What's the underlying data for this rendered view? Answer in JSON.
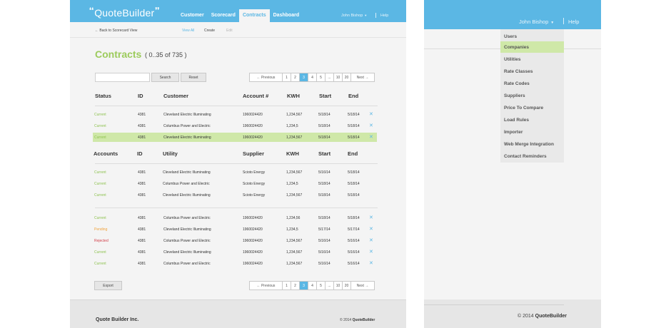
{
  "logo": {
    "text": "QuoteBuilder"
  },
  "nav": [
    "Customer",
    "Scorecard",
    "Contracts",
    "Dashboard"
  ],
  "nav_active": "Contracts",
  "user": {
    "name": "John Bishop",
    "help": "Help"
  },
  "subbar": {
    "back": "← Back to Scorecard View",
    "tabs": [
      "View All",
      "Create",
      "Edit"
    ]
  },
  "page": {
    "title": "Contracts",
    "count": "( 0..35 of 735 )"
  },
  "search": {
    "placeholder": "",
    "search_label": "Search",
    "reset_label": "Reset"
  },
  "pager": {
    "prev": "← Previous",
    "pages": [
      "1",
      "2",
      "3",
      "4",
      "5",
      "...",
      "10",
      "20"
    ],
    "current": "3",
    "next": "Next →"
  },
  "table1": {
    "headers": [
      "Status",
      "ID",
      "Customer",
      "Account #",
      "KWH",
      "Start",
      "End"
    ],
    "rows": [
      {
        "status": "Current",
        "status_type": "current",
        "id": "4381",
        "customer": "Cleveland Electric Illuminating",
        "account": "1960024420",
        "kwh": "1,234,567",
        "start": "5/18/14",
        "end": "5/18/14",
        "removable": true,
        "highlight": false
      },
      {
        "status": "Current",
        "status_type": "current",
        "id": "4381",
        "customer": "Columbus Power and Electric",
        "account": "1960024420",
        "kwh": "1,234,5",
        "start": "5/18/14",
        "end": "5/18/14",
        "removable": true,
        "highlight": false
      },
      {
        "status": "Current",
        "status_type": "current",
        "id": "4381",
        "customer": "Cleveland Electric Illuminating",
        "account": "1960024420",
        "kwh": "1,234,567",
        "start": "5/18/14",
        "end": "5/18/14",
        "removable": true,
        "highlight": true
      }
    ]
  },
  "table2": {
    "headers": [
      "Accounts",
      "ID",
      "Utility",
      "Supplier",
      "KWH",
      "Start",
      "End"
    ],
    "rows": [
      {
        "status": "Current",
        "status_type": "current",
        "id": "4381",
        "utility": "Cleveland Electric Illuminating",
        "supplier": "Scioto Energy",
        "kwh": "1,234,567",
        "start": "5/16/14",
        "end": "5/18/14"
      },
      {
        "status": "Current",
        "status_type": "current",
        "id": "4381",
        "utility": "Columbus Power and Electric",
        "supplier": "Scioto Energy",
        "kwh": "1,234,5",
        "start": "5/18/14",
        "end": "5/18/14"
      },
      {
        "status": "Current",
        "status_type": "current",
        "id": "4381",
        "utility": "Cleveland Electric Illuminating",
        "supplier": "Scioto Energy",
        "kwh": "1,234,567",
        "start": "5/18/14",
        "end": "5/18/14"
      }
    ]
  },
  "table3": {
    "rows": [
      {
        "status": "Current",
        "status_type": "current",
        "id": "4381",
        "customer": "Columbus Power and Electric",
        "account": "1960024420",
        "kwh": "1,234,56",
        "start": "5/18/14",
        "end": "5/18/14"
      },
      {
        "status": "Pending",
        "status_type": "pending",
        "id": "4381",
        "customer": "Cleveland Electric Illuminating",
        "account": "1960024420",
        "kwh": "1,234,5",
        "start": "5/17/14",
        "end": "5/17/14"
      },
      {
        "status": "Rejected",
        "status_type": "rejected",
        "id": "4381",
        "customer": "Columbus Power and Electric",
        "account": "1960024420",
        "kwh": "1,234,567",
        "start": "5/16/14",
        "end": "5/16/14"
      },
      {
        "status": "Current",
        "status_type": "current",
        "id": "4381",
        "customer": "Cleveland Electric Illuminating",
        "account": "1960024420",
        "kwh": "1,234,567",
        "start": "5/16/14",
        "end": "5/16/14"
      },
      {
        "status": "Current",
        "status_type": "current",
        "id": "4381",
        "customer": "Columbus Power and Electric",
        "account": "1960024420",
        "kwh": "1,234,567",
        "start": "5/16/14",
        "end": "5/16/14"
      }
    ]
  },
  "export_label": "Export",
  "footer": {
    "company": "Quote Builder Inc.",
    "copyright_prefix": "© 2014",
    "copyright_brand": "QuoteBuilder"
  },
  "right_panel": {
    "user": "John Bishop",
    "help": "Help",
    "menu": [
      "Users",
      "Companies",
      "Utilities",
      "Rate Classes",
      "Rate Codes",
      "Suppliers",
      "Price To Compare",
      "Load Rules",
      "Importer",
      "Web Merge Integration",
      "Contact Reminders"
    ],
    "menu_active": "Companies",
    "copyright_prefix": "© 2014",
    "copyright_brand": "QuoteBuilder"
  },
  "colors": {
    "accent": "#5bb7e4",
    "green": "#9ccb5c",
    "highlight": "#cfe8a8",
    "pending": "#f0a23b",
    "rejected": "#d2404a"
  },
  "icons": {
    "remove": "close-icon",
    "caret": "caret-down-icon"
  }
}
